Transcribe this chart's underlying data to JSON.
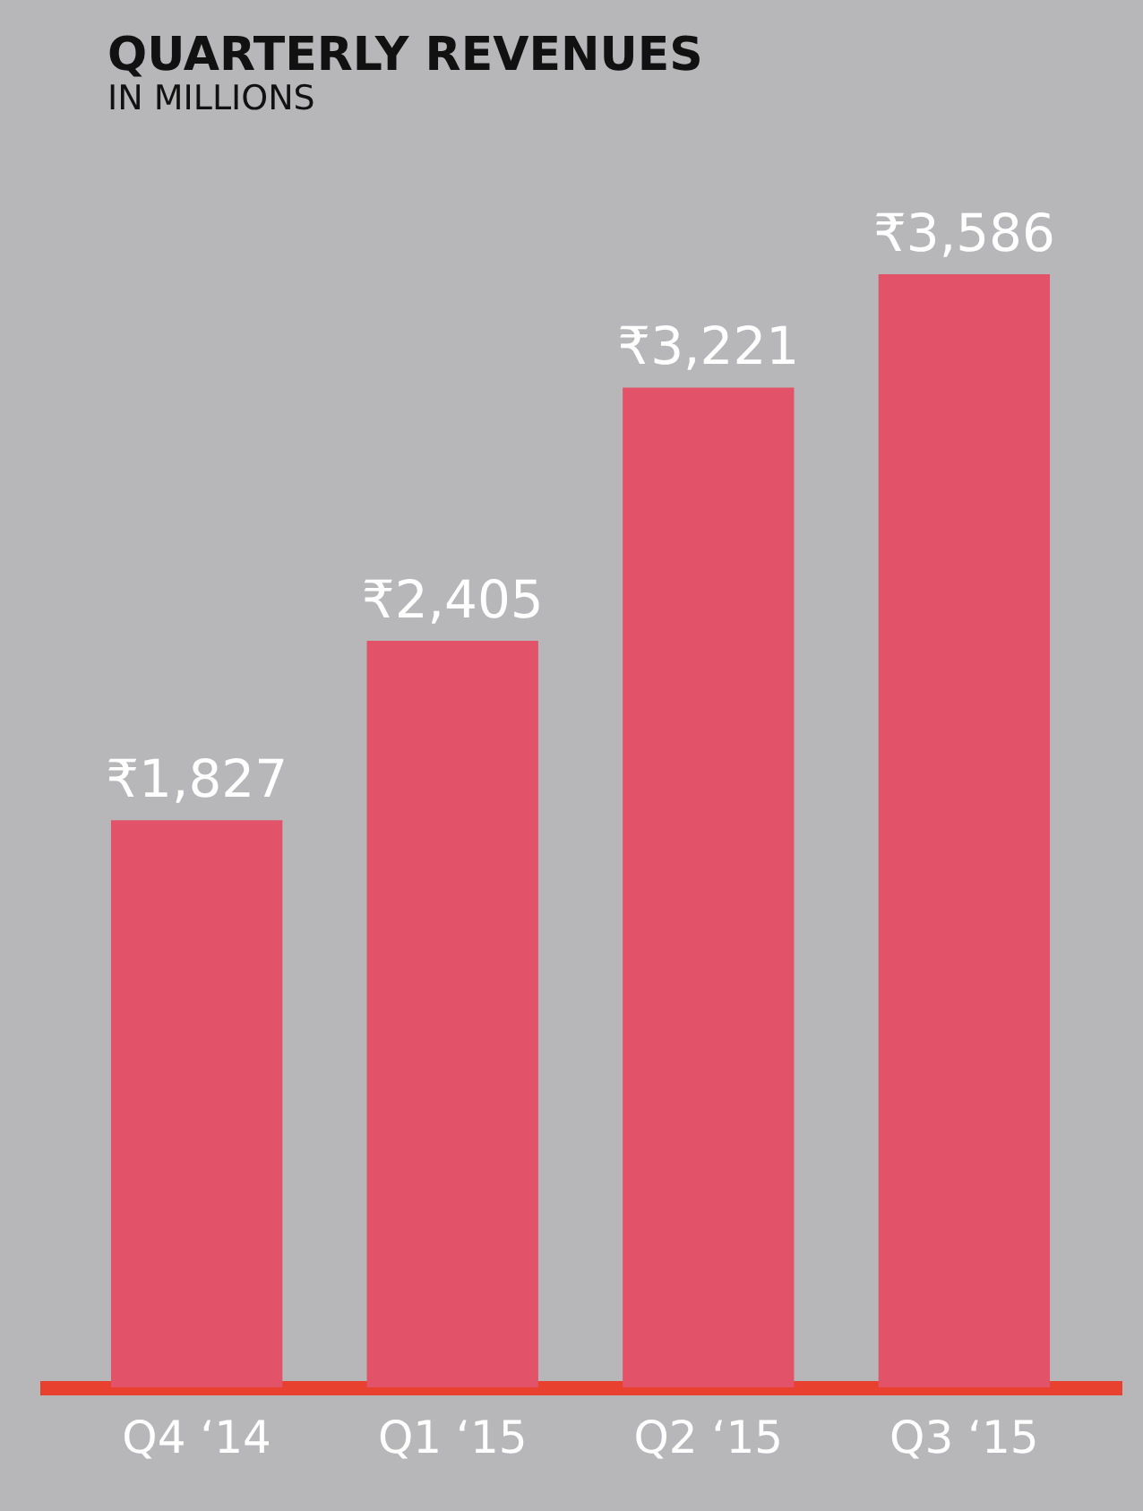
{
  "chart_data": {
    "type": "bar",
    "title": "QUARTERLY REVENUES",
    "subtitle": "IN MILLIONS",
    "categories": [
      "Q4 ‘14",
      "Q1 ‘15",
      "Q2 ‘15",
      "Q3 ‘15"
    ],
    "values": [
      1827,
      2405,
      3221,
      3586
    ],
    "value_labels": [
      "₹1,827",
      "₹2,405",
      "₹3,221",
      "₹3,586"
    ],
    "color": "#e2536a"
  }
}
